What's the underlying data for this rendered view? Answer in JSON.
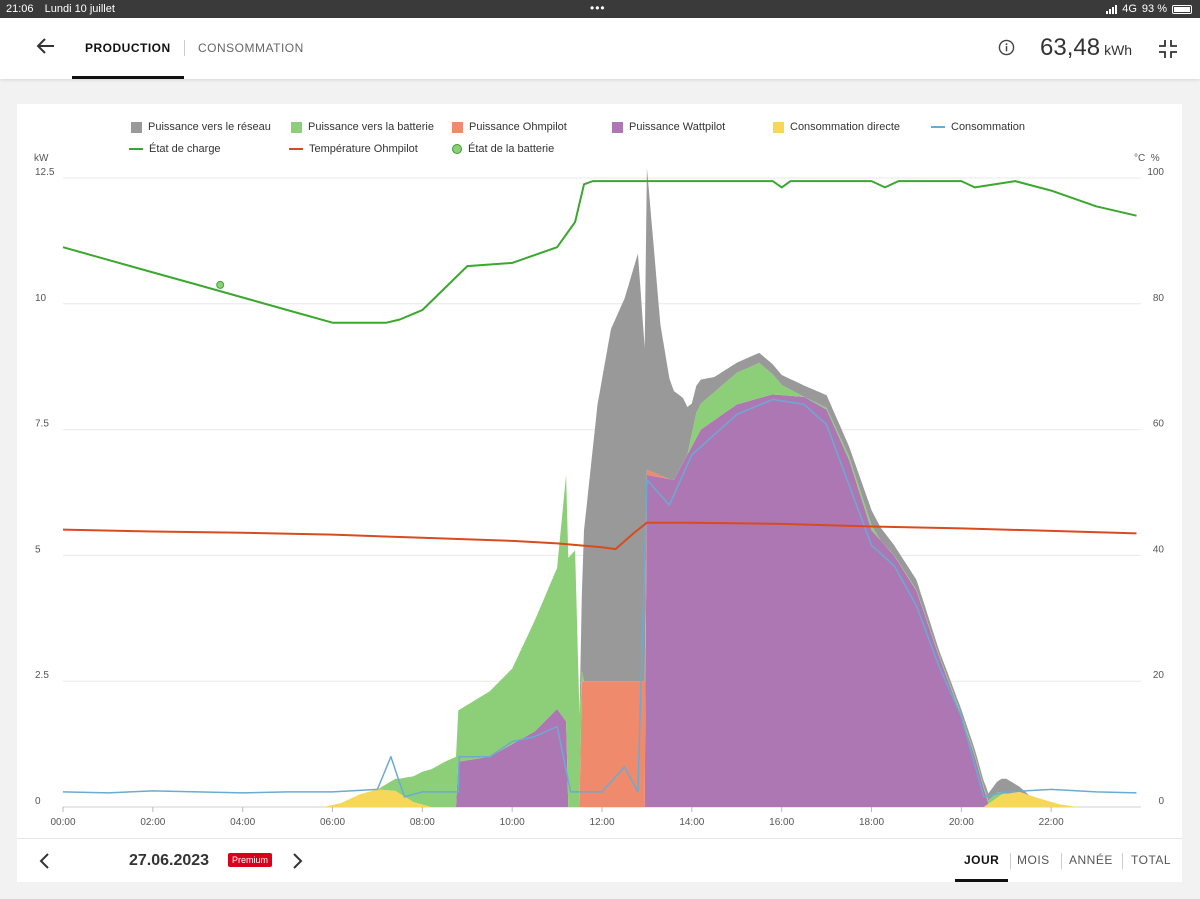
{
  "status_bar": {
    "time": "21:06",
    "date": "Lundi 10 juillet",
    "dots": "•••",
    "network": "4G",
    "battery": "93 %"
  },
  "header": {
    "tabs": [
      {
        "label": "PRODUCTION",
        "active": true
      },
      {
        "label": "CONSOMMATION",
        "active": false
      }
    ],
    "total_value": "63,48",
    "total_unit": "kWh",
    "icons": {
      "back": "arrow-left-icon",
      "info": "info-icon",
      "collapse": "collapse-icon"
    }
  },
  "chart": {
    "legend": [
      {
        "label": "Puissance vers le réseau",
        "color": "#999999",
        "kind": "area"
      },
      {
        "label": "Puissance vers la batterie",
        "color": "#8dcf78",
        "kind": "area"
      },
      {
        "label": "Puissance Ohmpilot",
        "color": "#ef8a6d",
        "kind": "area"
      },
      {
        "label": "Puissance Wattpilot",
        "color": "#ad77b4",
        "kind": "area"
      },
      {
        "label": "Consommation directe",
        "color": "#f6d75a",
        "kind": "area"
      },
      {
        "label": "Consommation",
        "color": "#6aabd2",
        "kind": "line"
      },
      {
        "label": "État de charge",
        "color": "#3aa82e",
        "kind": "line"
      },
      {
        "label": "Température Ohmpilot",
        "color": "#d84b1f",
        "kind": "line"
      },
      {
        "label": "État de la batterie",
        "color": "#3aa82e",
        "kind": "dot"
      }
    ],
    "left_unit": "kW",
    "right_unit": "°C  %",
    "left_ticks": [
      "12.5",
      "10",
      "7.5",
      "5",
      "2.5",
      "0"
    ],
    "right_ticks": [
      "100",
      "80",
      "60",
      "40",
      "20",
      "0"
    ],
    "x_ticks": [
      "00:00",
      "02:00",
      "04:00",
      "06:00",
      "08:00",
      "10:00",
      "12:00",
      "14:00",
      "16:00",
      "18:00",
      "20:00",
      "22:00"
    ]
  },
  "chart_data": {
    "type": "area",
    "x_unit": "hours",
    "y_left": {
      "unit": "kW",
      "range": [
        0,
        12.5
      ]
    },
    "y_right": {
      "unit": "°C  %",
      "range": [
        0,
        100
      ]
    },
    "grid": true,
    "legend_position": "top",
    "stack_series": [
      {
        "name": "Consommation directe",
        "color": "#f6d75a",
        "points": [
          [
            0,
            0
          ],
          [
            5.8,
            0
          ],
          [
            6.2,
            0.08
          ],
          [
            6.6,
            0.25
          ],
          [
            7.0,
            0.35
          ],
          [
            7.4,
            0.32
          ],
          [
            7.8,
            0.1
          ],
          [
            8.2,
            0
          ],
          [
            20.5,
            0
          ],
          [
            20.9,
            0.25
          ],
          [
            21.3,
            0.3
          ],
          [
            21.7,
            0.18
          ],
          [
            22.2,
            0.05
          ],
          [
            22.6,
            0
          ],
          [
            24,
            0
          ]
        ]
      },
      {
        "name": "Puissance Wattpilot",
        "color": "#ad77b4",
        "points": [
          [
            8.79,
            0
          ],
          [
            8.8,
            0.9
          ],
          [
            9.5,
            1.0
          ],
          [
            10.5,
            1.5
          ],
          [
            11.0,
            1.95
          ],
          [
            11.2,
            1.7
          ],
          [
            11.25,
            0
          ],
          [
            12.95,
            0
          ],
          [
            13.0,
            6.6
          ],
          [
            13.6,
            6.5
          ],
          [
            14.2,
            7.5
          ],
          [
            15.0,
            8.0
          ],
          [
            15.8,
            8.2
          ],
          [
            16.5,
            8.15
          ],
          [
            17.0,
            7.9
          ],
          [
            17.5,
            6.9
          ],
          [
            18.0,
            5.5
          ],
          [
            18.5,
            5.0
          ],
          [
            19.0,
            4.3
          ],
          [
            19.5,
            3.0
          ],
          [
            20.0,
            1.8
          ],
          [
            20.3,
            1.0
          ],
          [
            20.55,
            0.2
          ],
          [
            20.6,
            0
          ]
        ]
      },
      {
        "name": "Puissance Ohmpilot",
        "color": "#ef8a6d",
        "points": [
          [
            11.5,
            0
          ],
          [
            11.55,
            2.5
          ],
          [
            12.9,
            2.5
          ],
          [
            12.95,
            2.5
          ],
          [
            13.0,
            0.1
          ],
          [
            13.5,
            0
          ],
          [
            14,
            0
          ]
        ]
      },
      {
        "name": "Puissance vers la batterie",
        "color": "#8dcf78",
        "points": [
          [
            7.0,
            0
          ],
          [
            7.5,
            0.3
          ],
          [
            8.0,
            0.65
          ],
          [
            8.5,
            0.9
          ],
          [
            9.0,
            1.1
          ],
          [
            9.5,
            1.3
          ],
          [
            10.0,
            1.5
          ],
          [
            10.5,
            2.2
          ],
          [
            11.0,
            2.8
          ],
          [
            11.2,
            4.9
          ],
          [
            11.4,
            5.1
          ],
          [
            11.55,
            0.2
          ],
          [
            11.6,
            0
          ],
          [
            13.9,
            0
          ],
          [
            14.1,
            0.5
          ],
          [
            15.5,
            0.7
          ],
          [
            16.0,
            0.2
          ],
          [
            16.5,
            0
          ],
          [
            18.0,
            0.1
          ],
          [
            18.2,
            0
          ],
          [
            20.5,
            0.05
          ],
          [
            20.8,
            0.1
          ],
          [
            21.0,
            0
          ]
        ]
      },
      {
        "name": "Puissance vers le réseau",
        "color": "#999999",
        "points": [
          [
            11.5,
            0
          ],
          [
            11.6,
            3.0
          ],
          [
            11.9,
            5.5
          ],
          [
            12.2,
            7.0
          ],
          [
            12.5,
            7.6
          ],
          [
            12.8,
            8.5
          ],
          [
            13.0,
            6.0
          ],
          [
            13.3,
            3.0
          ],
          [
            13.5,
            2.0
          ],
          [
            13.8,
            1.3
          ],
          [
            14.0,
            0.6
          ],
          [
            14.5,
            0.3
          ],
          [
            15.0,
            0.2
          ],
          [
            16.0,
            0.2
          ],
          [
            17.0,
            0.25
          ],
          [
            17.5,
            0.2
          ],
          [
            18.0,
            0.3
          ],
          [
            18.5,
            0.2
          ],
          [
            19.0,
            0.2
          ],
          [
            19.5,
            0.1
          ],
          [
            20.5,
            0.1
          ],
          [
            21.0,
            0.3
          ],
          [
            21.3,
            0.1
          ],
          [
            21.5,
            0
          ]
        ]
      }
    ],
    "lines": [
      {
        "name": "Consommation",
        "color": "#6aabd2",
        "axis": "left",
        "points": [
          [
            0,
            0.3
          ],
          [
            1,
            0.28
          ],
          [
            2,
            0.32
          ],
          [
            3,
            0.3
          ],
          [
            4,
            0.28
          ],
          [
            5,
            0.3
          ],
          [
            6,
            0.3
          ],
          [
            7.0,
            0.35
          ],
          [
            7.3,
            1.0
          ],
          [
            7.6,
            0.2
          ],
          [
            8.0,
            0.3
          ],
          [
            8.8,
            0.3
          ],
          [
            8.82,
            1.0
          ],
          [
            9.5,
            1.0
          ],
          [
            10.0,
            1.3
          ],
          [
            10.5,
            1.4
          ],
          [
            11.0,
            1.6
          ],
          [
            11.3,
            0.3
          ],
          [
            12.0,
            0.3
          ],
          [
            12.5,
            0.8
          ],
          [
            12.8,
            0.3
          ],
          [
            13.0,
            6.5
          ],
          [
            13.5,
            6.0
          ],
          [
            14.0,
            7.0
          ],
          [
            15.0,
            7.8
          ],
          [
            15.8,
            8.1
          ],
          [
            16.5,
            8.0
          ],
          [
            17.0,
            7.6
          ],
          [
            17.5,
            6.4
          ],
          [
            18.0,
            5.2
          ],
          [
            18.5,
            4.8
          ],
          [
            19.0,
            4.0
          ],
          [
            19.5,
            2.8
          ],
          [
            20.0,
            1.8
          ],
          [
            20.5,
            0.2
          ],
          [
            21.0,
            0.3
          ],
          [
            22.0,
            0.35
          ],
          [
            23.0,
            0.3
          ],
          [
            23.9,
            0.28
          ]
        ]
      },
      {
        "name": "État de charge",
        "color": "#3aa82e",
        "axis": "right",
        "points": [
          [
            0,
            89
          ],
          [
            1,
            87
          ],
          [
            2,
            85
          ],
          [
            3,
            83
          ],
          [
            4,
            81
          ],
          [
            5,
            79
          ],
          [
            6,
            77
          ],
          [
            6.8,
            77
          ],
          [
            7.2,
            77
          ],
          [
            7.5,
            77.5
          ],
          [
            8.0,
            79
          ],
          [
            9.0,
            86
          ],
          [
            10.0,
            86.5
          ],
          [
            11.0,
            89
          ],
          [
            11.4,
            93
          ],
          [
            11.6,
            99
          ],
          [
            11.8,
            99.5
          ],
          [
            15.8,
            99.5
          ],
          [
            16.0,
            98.5
          ],
          [
            16.2,
            99.5
          ],
          [
            18.0,
            99.5
          ],
          [
            18.3,
            98.5
          ],
          [
            18.6,
            99.5
          ],
          [
            20.0,
            99.5
          ],
          [
            20.3,
            98.5
          ],
          [
            21.2,
            99.5
          ],
          [
            22.0,
            98
          ],
          [
            23.0,
            95.5
          ],
          [
            23.9,
            94
          ]
        ]
      },
      {
        "name": "Température Ohmpilot",
        "color": "#d84b1f",
        "axis": "right",
        "points": [
          [
            0,
            44.1
          ],
          [
            2,
            43.8
          ],
          [
            4,
            43.6
          ],
          [
            6,
            43.3
          ],
          [
            8,
            42.8
          ],
          [
            10,
            42.3
          ],
          [
            11,
            41.9
          ],
          [
            12.0,
            41.3
          ],
          [
            12.3,
            41.0
          ],
          [
            12.7,
            43.5
          ],
          [
            13.0,
            45.2
          ],
          [
            14.0,
            45.2
          ],
          [
            16.0,
            45.0
          ],
          [
            18.0,
            44.6
          ],
          [
            20.0,
            44.3
          ],
          [
            22.0,
            43.9
          ],
          [
            23.9,
            43.5
          ]
        ]
      }
    ],
    "markers": [
      {
        "name": "État de la batterie",
        "x": 3.5,
        "y": 83,
        "axis": "right"
      }
    ]
  },
  "footer": {
    "date": "27.06.2023",
    "badge": "Premium",
    "periods": [
      {
        "label": "JOUR",
        "active": true
      },
      {
        "label": "MOIS",
        "active": false
      },
      {
        "label": "ANNÉE",
        "active": false
      },
      {
        "label": "TOTAL",
        "active": false
      }
    ],
    "icons": {
      "prev": "chevron-left-icon",
      "next": "chevron-right-icon"
    }
  }
}
